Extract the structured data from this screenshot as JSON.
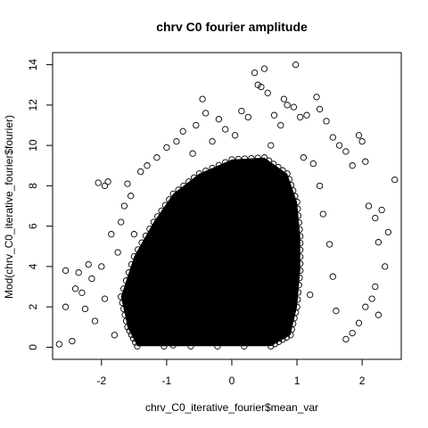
{
  "chart_data": {
    "type": "scatter",
    "title": "chrv C0 fourier amplitude",
    "xlabel": "chrv_C0_iterative_fourier$mean_var",
    "ylabel": "Mod(chrv_C0_iterative_fourier$fourier)",
    "xlim": [
      -2.75,
      2.6
    ],
    "ylim": [
      -0.6,
      14.6
    ],
    "x_ticks": [
      -2,
      -1,
      0,
      1,
      2
    ],
    "y_ticks": [
      0,
      2,
      4,
      6,
      8,
      10,
      12,
      14
    ],
    "x_tick_labels": [
      "-2",
      "-1",
      "0",
      "1",
      "2"
    ],
    "y_tick_labels": [
      "0",
      "2",
      "4",
      "6",
      "8",
      "10",
      "12",
      "14"
    ],
    "marker": "open-circle",
    "grid": false,
    "legend": "none",
    "dense_core": {
      "description_free_outline": [
        [
          -1.45,
          0.05
        ],
        [
          -1.6,
          1.0
        ],
        [
          -1.7,
          2.5
        ],
        [
          -1.5,
          4.5
        ],
        [
          -1.2,
          6.2
        ],
        [
          -0.9,
          7.6
        ],
        [
          -0.5,
          8.6
        ],
        [
          0.0,
          9.3
        ],
        [
          0.5,
          9.4
        ],
        [
          0.85,
          8.6
        ],
        [
          1.0,
          7.2
        ],
        [
          1.05,
          5.5
        ],
        [
          1.05,
          3.8
        ],
        [
          1.0,
          2.0
        ],
        [
          0.9,
          0.6
        ],
        [
          0.6,
          0.05
        ]
      ]
    },
    "outlier_points": [
      [
        -2.65,
        0.15
      ],
      [
        -2.55,
        2.0
      ],
      [
        -2.45,
        0.3
      ],
      [
        -2.55,
        3.8
      ],
      [
        -2.4,
        2.9
      ],
      [
        -2.35,
        3.7
      ],
      [
        -2.3,
        2.7
      ],
      [
        -2.25,
        1.9
      ],
      [
        -2.2,
        4.1
      ],
      [
        -2.15,
        3.4
      ],
      [
        -2.1,
        1.3
      ],
      [
        -2.0,
        4.0
      ],
      [
        -1.95,
        2.4
      ],
      [
        -2.05,
        8.15
      ],
      [
        -1.95,
        8.0
      ],
      [
        -1.9,
        8.2
      ],
      [
        -1.85,
        5.6
      ],
      [
        -1.8,
        0.6
      ],
      [
        -1.75,
        4.7
      ],
      [
        -1.7,
        6.2
      ],
      [
        -1.65,
        7.0
      ],
      [
        -1.6,
        8.1
      ],
      [
        -1.55,
        7.5
      ],
      [
        -1.4,
        8.7
      ],
      [
        -1.3,
        9.0
      ],
      [
        -1.15,
        9.4
      ],
      [
        -1.0,
        9.9
      ],
      [
        -0.85,
        10.2
      ],
      [
        -0.75,
        10.7
      ],
      [
        -0.55,
        11.0
      ],
      [
        -0.45,
        12.3
      ],
      [
        -0.4,
        11.6
      ],
      [
        -0.2,
        11.3
      ],
      [
        -0.1,
        10.8
      ],
      [
        0.15,
        11.7
      ],
      [
        0.25,
        11.4
      ],
      [
        0.35,
        13.6
      ],
      [
        0.4,
        13.0
      ],
      [
        0.45,
        12.9
      ],
      [
        0.5,
        13.8
      ],
      [
        0.55,
        12.6
      ],
      [
        0.65,
        11.5
      ],
      [
        0.75,
        11.0
      ],
      [
        0.8,
        12.3
      ],
      [
        0.85,
        12.0
      ],
      [
        0.95,
        11.9
      ],
      [
        0.98,
        14.0
      ],
      [
        1.05,
        11.4
      ],
      [
        1.15,
        11.5
      ],
      [
        1.3,
        12.4
      ],
      [
        1.35,
        11.8
      ],
      [
        1.45,
        11.2
      ],
      [
        1.55,
        10.4
      ],
      [
        1.65,
        10.0
      ],
      [
        1.75,
        9.7
      ],
      [
        1.85,
        9.0
      ],
      [
        1.95,
        10.5
      ],
      [
        2.0,
        10.2
      ],
      [
        2.05,
        9.2
      ],
      [
        2.1,
        7.0
      ],
      [
        2.2,
        6.4
      ],
      [
        2.25,
        5.2
      ],
      [
        2.3,
        6.8
      ],
      [
        2.35,
        4.0
      ],
      [
        2.4,
        5.7
      ],
      [
        2.5,
        8.3
      ],
      [
        2.2,
        3.0
      ],
      [
        2.15,
        2.4
      ],
      [
        2.25,
        1.6
      ],
      [
        2.05,
        2.0
      ],
      [
        1.95,
        1.2
      ],
      [
        1.85,
        0.7
      ],
      [
        1.75,
        0.4
      ],
      [
        1.6,
        1.8
      ],
      [
        1.55,
        3.5
      ],
      [
        1.5,
        5.1
      ],
      [
        1.4,
        6.6
      ],
      [
        1.35,
        8.0
      ],
      [
        1.25,
        9.1
      ],
      [
        1.2,
        2.6
      ],
      [
        -1.1,
        0.3
      ],
      [
        -0.9,
        0.1
      ],
      [
        -1.25,
        1.6
      ],
      [
        -1.35,
        3.2
      ],
      [
        -1.5,
        5.6
      ],
      [
        -0.6,
        9.6
      ],
      [
        -0.3,
        10.2
      ],
      [
        0.05,
        10.5
      ],
      [
        0.6,
        10.0
      ],
      [
        1.1,
        9.4
      ]
    ]
  }
}
